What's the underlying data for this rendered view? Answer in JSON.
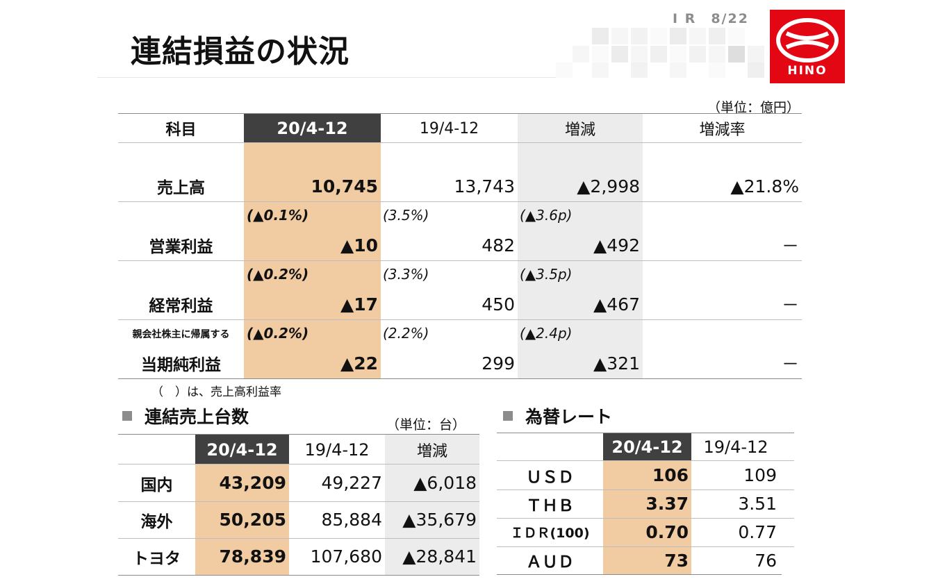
{
  "header": {
    "title": "連結損益の状況",
    "page": "I R　8/22",
    "logo_text": "HINO"
  },
  "colors": {
    "highlight": "#f1cba2",
    "header_dark": "#404040",
    "header_gray": "#ececec",
    "brand_red": "#e30613"
  },
  "pl": {
    "unit": "（単位：億円）",
    "headers": [
      "科目",
      "20/4-12",
      "19/4-12",
      "増減",
      "増減率"
    ],
    "rows": [
      {
        "label_sub": "",
        "label": "売上高",
        "cur": "10,745",
        "prev": "13,743",
        "diff": "▲2,998",
        "rate": "▲21.8%",
        "cur_pct": "",
        "prev_pct": "",
        "diff_pct": ""
      },
      {
        "label_sub": "",
        "label": "営業利益",
        "cur": "▲10",
        "prev": "482",
        "diff": "▲492",
        "rate": "－",
        "cur_pct": "(▲0.1%)",
        "prev_pct": "(3.5%)",
        "diff_pct": "(▲3.6p)"
      },
      {
        "label_sub": "",
        "label": "経常利益",
        "cur": "▲17",
        "prev": "450",
        "diff": "▲467",
        "rate": "－",
        "cur_pct": "(▲0.2%)",
        "prev_pct": "(3.3%)",
        "diff_pct": "(▲3.5p)"
      },
      {
        "label_sub": "親会社株主に帰属する",
        "label": "当期純利益",
        "cur": "▲22",
        "prev": "299",
        "diff": "▲321",
        "rate": "－",
        "cur_pct": "(▲0.2%)",
        "prev_pct": "(2.2%)",
        "diff_pct": "(▲2.4p)"
      }
    ],
    "note": "（　）は、売上高利益率"
  },
  "units": {
    "heading": "連結売上台数",
    "unit": "（単位：台）",
    "headers": [
      "",
      "20/4-12",
      "19/4-12",
      "増減"
    ],
    "rows": [
      {
        "label": "国内",
        "cur": "43,209",
        "prev": "49,227",
        "diff": "▲6,018"
      },
      {
        "label": "海外",
        "cur": "50,205",
        "prev": "85,884",
        "diff": "▲35,679"
      },
      {
        "label": "トヨタ",
        "cur": "78,839",
        "prev": "107,680",
        "diff": "▲28,841"
      }
    ]
  },
  "fx": {
    "heading": "為替レート",
    "headers": [
      "",
      "20/4-12",
      "19/4-12"
    ],
    "rows": [
      {
        "label": "ＵＳＤ",
        "cur": "106",
        "prev": "109"
      },
      {
        "label": "ＴＨＢ",
        "cur": "3.37",
        "prev": "3.51"
      },
      {
        "label": "ＩＤＲ(100)",
        "cur": "0.70",
        "prev": "0.77"
      },
      {
        "label": "ＡＵＤ",
        "cur": "73",
        "prev": "76"
      }
    ]
  }
}
